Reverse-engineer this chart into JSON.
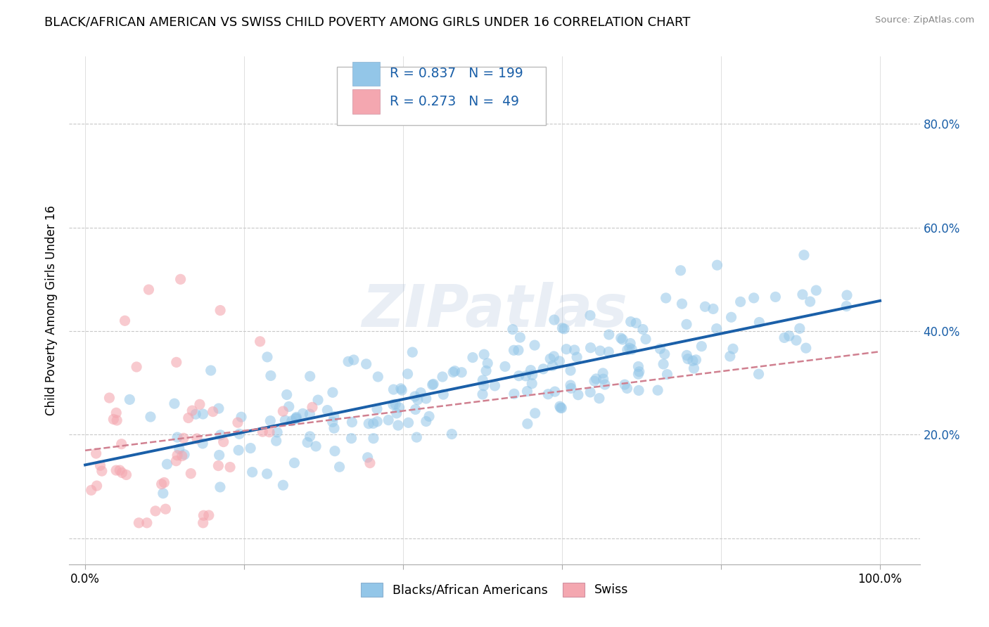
{
  "title": "BLACK/AFRICAN AMERICAN VS SWISS CHILD POVERTY AMONG GIRLS UNDER 16 CORRELATION CHART",
  "source": "Source: ZipAtlas.com",
  "ylabel": "Child Poverty Among Girls Under 16",
  "xlim": [
    -0.02,
    1.05
  ],
  "ylim": [
    -0.05,
    0.93
  ],
  "xticks": [
    0.0,
    0.2,
    0.4,
    0.6,
    0.8,
    1.0
  ],
  "xtick_labels": [
    "0.0%",
    "",
    "",
    "",
    "",
    "100.0%"
  ],
  "yticks": [
    0.0,
    0.2,
    0.4,
    0.6,
    0.8
  ],
  "ytick_labels_right": [
    "",
    "20.0%",
    "40.0%",
    "60.0%",
    "80.0%"
  ],
  "blue_R": 0.837,
  "blue_N": 199,
  "pink_R": 0.273,
  "pink_N": 49,
  "blue_color": "#93c6e8",
  "pink_color": "#f4a7b0",
  "blue_line_color": "#1a5fa8",
  "pink_line_color": "#d08090",
  "watermark": "ZIPatlas",
  "legend_label_blue": "Blacks/African Americans",
  "legend_label_pink": "Swiss",
  "background_color": "#ffffff",
  "grid_color": "#c8c8c8",
  "title_fontsize": 13,
  "axis_label_fontsize": 12,
  "tick_fontsize": 12,
  "legend_text_color": "#1a5fa8",
  "seed": 42
}
